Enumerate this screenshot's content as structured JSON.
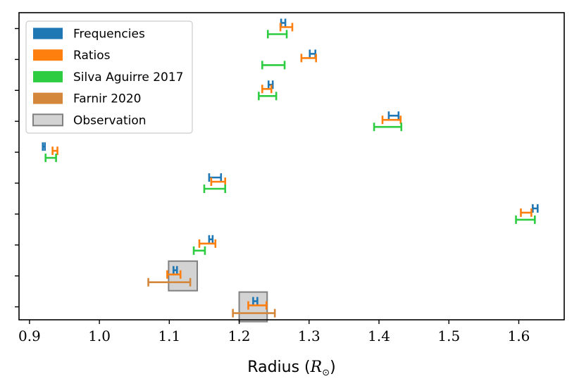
{
  "chart_data": {
    "type": "errorbar",
    "xlabel": "Radius (R_⊙)",
    "xlabel_main": "Radius (",
    "xlabel_symbol": "R",
    "xlabel_sub": "⊙",
    "xlabel_close": ")",
    "xlim": [
      0.885,
      1.665
    ],
    "xticks": [
      0.9,
      1.0,
      1.1,
      1.2,
      1.3,
      1.4,
      1.5,
      1.6
    ],
    "xtick_labels": [
      "0.9",
      "1.0",
      "1.1",
      "1.2",
      "1.3",
      "1.4",
      "1.5",
      "1.6"
    ],
    "n_stars": 10,
    "colors": {
      "frequencies": "#1f77b4",
      "ratios": "#ff7f0e",
      "silva": "#2ecc40",
      "farnir": "#d4873a",
      "observation_fill": "#d3d3d3",
      "observation_edge": "#808080"
    },
    "legend": [
      {
        "key": "frequencies",
        "label": "Frequencies"
      },
      {
        "key": "ratios",
        "label": "Ratios"
      },
      {
        "key": "silva",
        "label": "Silva Aguirre 2017"
      },
      {
        "key": "farnir",
        "label": "Farnir 2020"
      },
      {
        "key": "observation",
        "label": "Observation"
      }
    ],
    "stars": [
      {
        "index": 0,
        "frequencies": [
          1.26,
          1.266
        ],
        "ratios": [
          1.259,
          1.276
        ],
        "silva": [
          1.241,
          1.268
        ]
      },
      {
        "index": 1,
        "frequencies": [
          1.301,
          1.309
        ],
        "ratios": [
          1.289,
          1.31
        ],
        "silva": [
          1.233,
          1.265
        ]
      },
      {
        "index": 2,
        "frequencies": [
          1.242,
          1.248
        ],
        "ratios": [
          1.233,
          1.246
        ],
        "silva": [
          1.228,
          1.253
        ]
      },
      {
        "index": 3,
        "frequencies": [
          1.414,
          1.428
        ],
        "ratios": [
          1.405,
          1.431
        ],
        "silva": [
          1.393,
          1.432
        ]
      },
      {
        "index": 4,
        "frequencies": [
          0.919,
          0.922
        ],
        "ratios": [
          0.933,
          0.94
        ],
        "silva": [
          0.923,
          0.938
        ]
      },
      {
        "index": 5,
        "frequencies": [
          1.157,
          1.174
        ],
        "ratios": [
          1.16,
          1.18
        ],
        "silva": [
          1.15,
          1.18
        ]
      },
      {
        "index": 6,
        "frequencies": [
          1.62,
          1.627
        ],
        "ratios": [
          1.603,
          1.618
        ],
        "silva": [
          1.596,
          1.623
        ]
      },
      {
        "index": 7,
        "frequencies": [
          1.157,
          1.162
        ],
        "ratios": [
          1.143,
          1.166
        ],
        "silva": [
          1.135,
          1.151
        ]
      },
      {
        "index": 8,
        "frequencies": [
          1.106,
          1.111
        ],
        "ratios": [
          1.097,
          1.116
        ],
        "farnir": [
          1.07,
          1.13
        ],
        "observation": [
          1.099,
          1.14
        ]
      },
      {
        "index": 9,
        "frequencies": [
          1.22,
          1.226
        ],
        "ratios": [
          1.213,
          1.239
        ],
        "farnir": [
          1.191,
          1.251
        ],
        "observation": [
          1.2,
          1.24
        ]
      }
    ]
  }
}
